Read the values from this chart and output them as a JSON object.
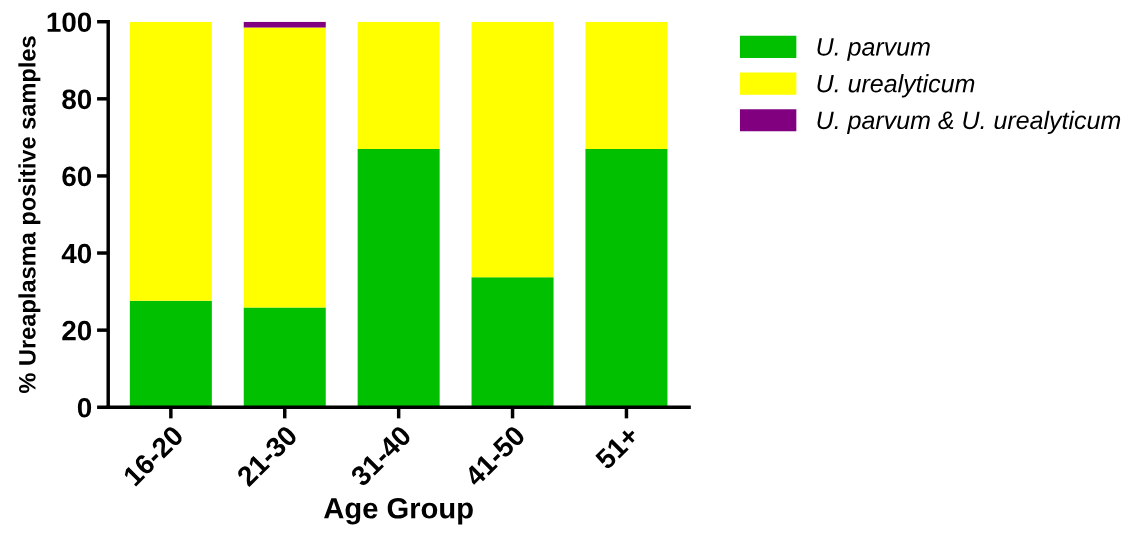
{
  "chart_data": {
    "type": "bar",
    "stacked": true,
    "xlabel": "Age Group",
    "ylabel": "% Ureaplasma positive samples",
    "categories": [
      "16-20",
      "21-30",
      "31-40",
      "41-50",
      "51+"
    ],
    "series": [
      {
        "name": "U. parvum",
        "color": "#00c000",
        "values": [
          27.6,
          25.9,
          67.0,
          33.7,
          67.0
        ]
      },
      {
        "name": "U. urealyticum",
        "color": "#ffff00",
        "values": [
          72.4,
          72.6,
          33.0,
          66.3,
          33.0
        ]
      },
      {
        "name": "U. parvum & U. urealyticum",
        "color": "#800080",
        "values": [
          null,
          1.5,
          null,
          null,
          null
        ]
      }
    ],
    "ylim": [
      0,
      100
    ],
    "yticks": [
      0,
      20,
      40,
      60,
      80,
      100
    ],
    "grid": false,
    "legend": "top right"
  }
}
